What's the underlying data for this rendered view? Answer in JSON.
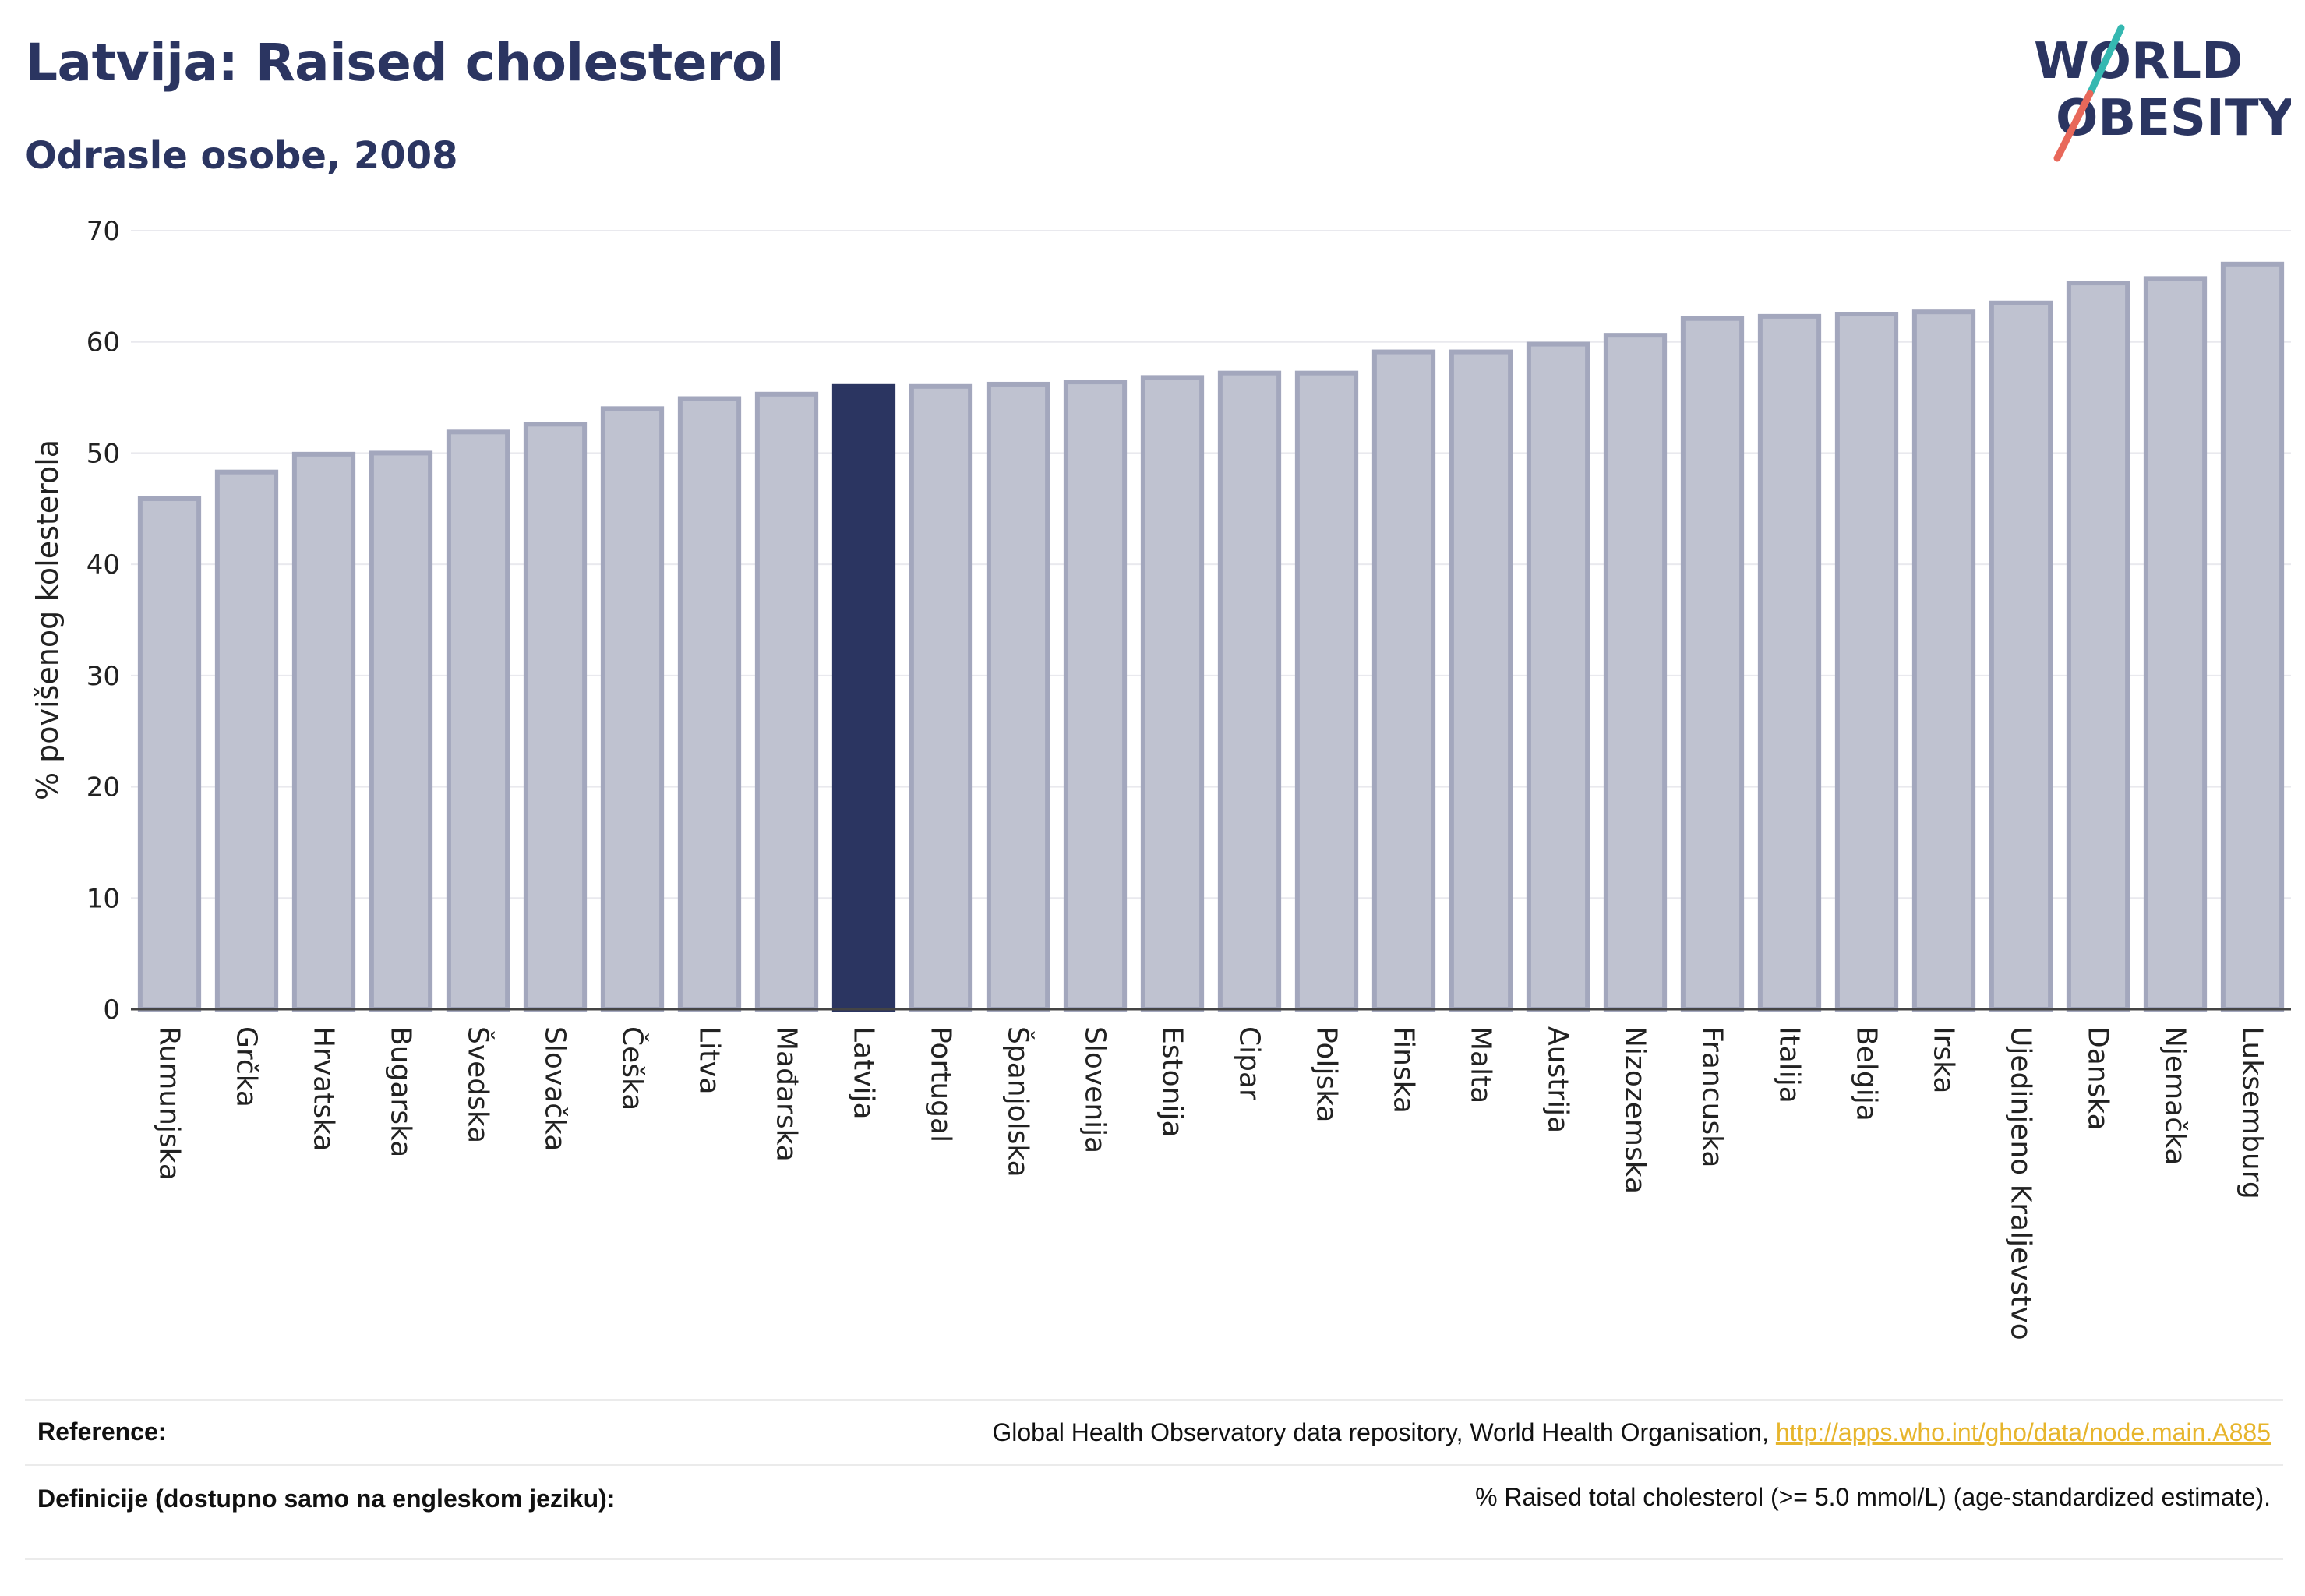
{
  "header": {
    "title": "Latvija: Raised cholesterol",
    "subtitle": "Odrasle osobe, 2008"
  },
  "logo": {
    "line1": "WORLD",
    "line2": "OBESITY",
    "colors": {
      "text": "#2b3561",
      "slash_top": "#35b8b1",
      "slash_bottom": "#e8685a"
    }
  },
  "chart_data": {
    "type": "bar",
    "ylabel": "% povišenog kolesterola",
    "ylim": [
      0,
      70
    ],
    "yticks": [
      0,
      10,
      20,
      30,
      40,
      50,
      60,
      70
    ],
    "grid": true,
    "highlight": "Latvija",
    "colors": {
      "bar": "#bfc2d0",
      "bar_border": "#a3a7bd",
      "highlight": "#2b3561"
    },
    "categories": [
      "Rumunjska",
      "Grčka",
      "Hrvatska",
      "Bugarska",
      "Švedska",
      "Slovačka",
      "Češka",
      "Litva",
      "Mađarska",
      "Latvija",
      "Portugal",
      "Španjolska",
      "Slovenija",
      "Estonija",
      "Cipar",
      "Poljska",
      "Finska",
      "Malta",
      "Austrija",
      "Nizozemska",
      "Francuska",
      "Italija",
      "Belgija",
      "Irska",
      "Ujedinjeno Kraljevstvo",
      "Danska",
      "Njemačka",
      "Luksemburg"
    ],
    "values": [
      45.9,
      48.3,
      49.9,
      50.0,
      51.9,
      52.6,
      54.0,
      54.9,
      55.3,
      56.0,
      56.0,
      56.2,
      56.4,
      56.8,
      57.2,
      57.2,
      59.1,
      59.1,
      59.8,
      60.6,
      62.1,
      62.3,
      62.5,
      62.7,
      63.5,
      65.3,
      65.7,
      67.0
    ]
  },
  "footer": {
    "reference_label": "Reference:",
    "reference_text": "Global Health Observatory data repository, World Health Organisation, ",
    "reference_link": "http://apps.who.int/gho/data/node.main.A885",
    "definition_label": "Definicije (dostupno samo na engleskom jeziku):",
    "definition_text": "% Raised total cholesterol (>= 5.0 mmol/L) (age-standardized estimate)."
  }
}
